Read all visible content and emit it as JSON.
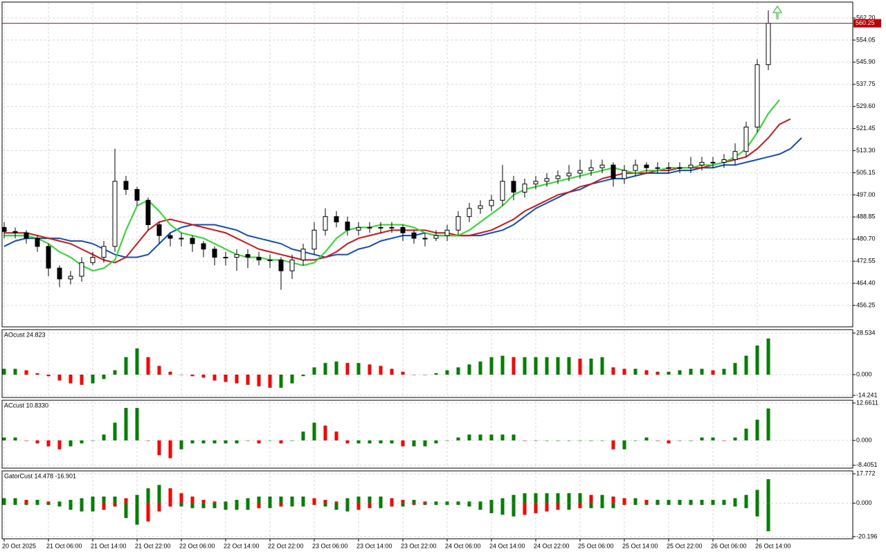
{
  "chart_data": [
    {
      "type": "candlestick",
      "up_color": "#ffffff",
      "down_color": "#000000",
      "wick_color": "#000000",
      "open": [
        485,
        483.5,
        483,
        481,
        478,
        470,
        466,
        467,
        472,
        474,
        478,
        502,
        499,
        495,
        486,
        482,
        481,
        481,
        479,
        477,
        474,
        474,
        475,
        474,
        473,
        473,
        469,
        473,
        477,
        484,
        489,
        487,
        484,
        485,
        485,
        485,
        485,
        483,
        481,
        481,
        482,
        484,
        489,
        492,
        493,
        495,
        502,
        498,
        501,
        502,
        503,
        504,
        505,
        506,
        507,
        508,
        503,
        506,
        508,
        507,
        507,
        507,
        507,
        508,
        509,
        509,
        510,
        513,
        522,
        545
      ],
      "high": [
        487,
        485,
        484,
        482,
        479,
        471,
        469,
        474,
        476,
        480,
        514,
        504,
        500,
        496,
        487,
        483,
        483,
        482,
        480,
        478,
        476,
        477,
        477,
        476,
        475,
        474,
        475,
        479,
        487,
        492,
        491,
        489,
        487,
        487,
        487,
        487,
        486,
        484,
        483,
        484,
        486,
        491,
        494,
        495,
        497,
        508,
        504,
        503,
        504,
        505,
        506,
        508,
        510,
        510,
        510,
        509,
        508,
        510,
        509,
        509,
        509,
        509,
        511,
        511,
        511,
        512,
        516,
        524,
        547,
        565
      ],
      "low": [
        481,
        481,
        479,
        476,
        467,
        463,
        464,
        465,
        471,
        472,
        476,
        497,
        493,
        484,
        479,
        478,
        478,
        476,
        474,
        471,
        471,
        469,
        470,
        471,
        470,
        462,
        466,
        471,
        475,
        482,
        485,
        482,
        482,
        483,
        483,
        483,
        480,
        479,
        478,
        480,
        480,
        482,
        487,
        490,
        491,
        493,
        495,
        496,
        499,
        500,
        501,
        502,
        503,
        504,
        505,
        500,
        501,
        504,
        505,
        505,
        505,
        505,
        505,
        506,
        507,
        507,
        508,
        511,
        520,
        543
      ],
      "close": [
        483.5,
        483,
        481,
        478,
        470,
        466,
        467,
        472,
        474,
        478,
        502,
        499,
        495,
        486,
        482,
        481,
        481,
        479,
        477,
        474,
        474,
        475,
        474,
        473,
        473,
        469,
        473,
        477,
        484,
        489,
        487,
        484,
        485,
        485,
        485,
        485,
        483,
        481,
        481,
        482,
        484,
        489,
        492,
        493,
        495,
        502,
        498,
        501,
        502,
        503,
        504,
        505,
        506,
        507,
        508,
        503,
        506,
        508,
        507,
        507,
        507,
        507,
        508,
        509,
        509,
        510,
        513,
        522,
        545,
        560.25
      ],
      "series": [
        {
          "color": "#0a4fc8",
          "values": [
            478,
            480,
            481,
            481,
            481,
            481,
            480,
            480,
            479,
            477,
            475,
            474,
            474,
            475,
            479,
            483,
            485,
            486,
            486,
            486,
            485,
            484,
            482,
            481,
            480,
            479,
            477,
            476,
            475,
            474,
            475,
            475,
            477,
            478,
            480,
            481,
            482,
            482,
            483,
            482,
            482,
            482,
            482,
            482,
            483,
            484,
            486,
            489,
            492,
            494,
            496,
            498,
            499,
            501,
            502,
            503,
            503,
            504,
            505,
            505,
            505,
            506,
            506,
            507,
            507,
            508,
            508,
            509,
            510,
            511,
            512,
            514,
            518
          ]
        },
        {
          "color": "#e01010",
          "values": [
            483,
            483,
            483,
            482,
            481,
            480,
            479,
            477,
            475,
            473,
            472,
            474,
            479,
            484,
            487,
            488,
            487,
            486,
            485,
            484,
            483,
            481,
            479,
            477,
            476,
            475,
            474,
            473,
            473,
            474,
            476,
            479,
            481,
            482,
            483,
            484,
            484,
            484,
            484,
            483,
            483,
            482,
            482,
            483,
            484,
            486,
            488,
            491,
            493,
            495,
            497,
            498,
            500,
            501,
            503,
            504,
            505,
            505,
            505,
            506,
            506,
            507,
            507,
            507,
            508,
            509,
            510,
            511,
            514,
            518,
            523,
            525
          ]
        },
        {
          "color": "#22e022",
          "values": [
            482,
            482,
            482,
            481,
            479,
            476,
            474,
            471,
            469,
            470,
            473,
            484,
            493,
            495,
            491,
            486,
            483,
            482,
            481,
            479,
            477,
            475,
            474,
            474,
            473,
            473,
            472,
            471,
            472,
            476,
            481,
            484,
            485,
            485,
            486,
            486,
            486,
            485,
            483,
            482,
            482,
            482,
            484,
            487,
            490,
            493,
            497,
            499,
            500,
            501,
            502,
            503,
            504,
            505,
            506,
            507,
            506,
            505,
            506,
            506,
            507,
            507,
            507,
            508,
            508,
            509,
            511,
            514,
            520,
            527,
            532
          ]
        }
      ],
      "last_price": 560.25,
      "price_color": "#c00000",
      "ylim": [
        448.34,
        568.07
      ],
      "yticks": [
        {
          "value": 562.2,
          "label": "562.20"
        },
        554.05,
        {
          "value": 545.9,
          "label": "545.90"
        },
        537.75,
        {
          "value": 529.6,
          "label": "529.60"
        },
        521.45,
        {
          "value": 513.3,
          "label": "513.30"
        },
        505.15,
        {
          "value": 497,
          "label": "497.00"
        },
        488.85,
        {
          "value": 480.7,
          "label": "480.70"
        },
        472.55,
        {
          "value": 464.4,
          "label": "464.40"
        },
        456.25
      ],
      "xticks": [
        {
          "value": 0,
          "label": "20 Oct 2025"
        },
        {
          "value": 4,
          "label": "21 Oct 06:00"
        },
        {
          "value": 8,
          "label": "21 Oct 14:00"
        },
        {
          "value": 12,
          "label": "21 Oct 22:00"
        },
        {
          "value": 16,
          "label": "22 Oct 06:00"
        },
        {
          "value": 20,
          "label": "22 Oct 14:00"
        },
        {
          "value": 24,
          "label": "22 Oct 22:00"
        },
        {
          "value": 28,
          "label": "23 Oct 06:00"
        },
        {
          "value": 32,
          "label": "23 Oct 14:00"
        },
        {
          "value": 36,
          "label": "23 Oct 22:00"
        },
        {
          "value": 40,
          "label": "24 Oct 06:00"
        },
        {
          "value": 44,
          "label": "24 Oct 14:00"
        },
        {
          "value": 48,
          "label": "24 Oct 22:00"
        },
        {
          "value": 52,
          "label": "25 Oct 06:00"
        },
        {
          "value": 56,
          "label": "25 Oct 14:00"
        },
        {
          "value": 60,
          "label": "25 Oct 22:00"
        },
        {
          "value": 64,
          "label": "26 Oct 06:00"
        },
        {
          "value": 68,
          "label": "26 Oct 14:00"
        }
      ],
      "grid": true
    },
    {
      "type": "histogram",
      "title": "AOcust 24.823",
      "up_color": "#008000",
      "down_color": "#ff0000",
      "values": [
        4,
        4,
        3,
        1,
        -1,
        -4,
        -6,
        -7,
        -6,
        -3,
        3,
        12,
        18,
        12,
        6,
        2,
        0,
        -1,
        -2,
        -4,
        -5,
        -6,
        -7,
        -8,
        -9,
        -9,
        -6,
        -1,
        5,
        8,
        9,
        8,
        8,
        7,
        6,
        4,
        2,
        0,
        0,
        1,
        3,
        5,
        7,
        9,
        12,
        13,
        12,
        12,
        12,
        12,
        12,
        12,
        11,
        11,
        12,
        5,
        4,
        4,
        3,
        2,
        2,
        3,
        4,
        4,
        3,
        4,
        8,
        13,
        20,
        24.823
      ],
      "ylim": [
        -15.7,
        30.9
      ],
      "yticks": [
        28.534,
        {
          "value": 0,
          "label": "0.000"
        },
        -14.241
      ],
      "grid": true
    },
    {
      "type": "histogram",
      "title": "ACcust 10.8330",
      "up_color": "#008000",
      "down_color": "#ff0000",
      "values": [
        1,
        1,
        0,
        -1,
        -2,
        -3,
        -2,
        -1,
        0,
        2,
        6,
        11,
        11,
        0,
        -5,
        -6,
        -3,
        -1,
        -1,
        -1,
        -1,
        -1,
        0,
        -1,
        0,
        -1,
        0,
        3,
        6,
        5,
        3,
        -1,
        -1,
        -1,
        -1,
        -1,
        -2,
        -2,
        -2,
        -1,
        0,
        1,
        2,
        2,
        2,
        2,
        2,
        0,
        0,
        0,
        0,
        0,
        0,
        0,
        0,
        -3,
        -3,
        0,
        1,
        0,
        -1,
        0,
        0,
        1,
        1,
        0,
        1,
        4,
        7,
        10.833
      ],
      "ylim": [
        -9.38,
        13.6
      ],
      "yticks": [
        12.6611,
        {
          "value": 0,
          "label": "0.000"
        },
        -8.4051
      ],
      "grid": true
    },
    {
      "type": "gator",
      "title": "GatorCust 14.478 -16.901",
      "up_color": "#008000",
      "down_color": "#ff0000",
      "upper": [
        3,
        3,
        2,
        2,
        1,
        1,
        2,
        3,
        4,
        4,
        4,
        3,
        5,
        9,
        11,
        9,
        6,
        4,
        2,
        1,
        1,
        2,
        3,
        4,
        4,
        4,
        4,
        4,
        3,
        2,
        1,
        3,
        4,
        4,
        4,
        3,
        2,
        2,
        1,
        1,
        1,
        1,
        1,
        1,
        2,
        3,
        5,
        6,
        6,
        6,
        6,
        6,
        6,
        5,
        5,
        4,
        3,
        3,
        2,
        2,
        2,
        2,
        2,
        2,
        2,
        2,
        3,
        5,
        8,
        14.478
      ],
      "lower": [
        -1,
        -1,
        -1,
        -1,
        -1,
        -2,
        -4,
        -5,
        -5,
        -4,
        -2,
        -9,
        -13,
        -11,
        -5,
        -2,
        -2,
        -3,
        -3,
        -3,
        -4,
        -4,
        -4,
        -3,
        -3,
        -2,
        -2,
        -2,
        -1,
        -2,
        -4,
        -5,
        -4,
        -3,
        -3,
        -2,
        -2,
        -1,
        -1,
        -1,
        -1,
        -1,
        -2,
        -4,
        -6,
        -7,
        -8,
        -7,
        -6,
        -5,
        -4,
        -4,
        -3,
        -3,
        -3,
        -3,
        -1,
        -1,
        -1,
        -1,
        -1,
        -1,
        -1,
        -1,
        -1,
        -1,
        -2,
        -3,
        -8,
        -16.901
      ],
      "ylim": [
        -21.5,
        19.5
      ],
      "yticks": [
        17.772,
        {
          "value": 0,
          "label": "0.000"
        },
        -20.196
      ],
      "grid": true
    }
  ]
}
